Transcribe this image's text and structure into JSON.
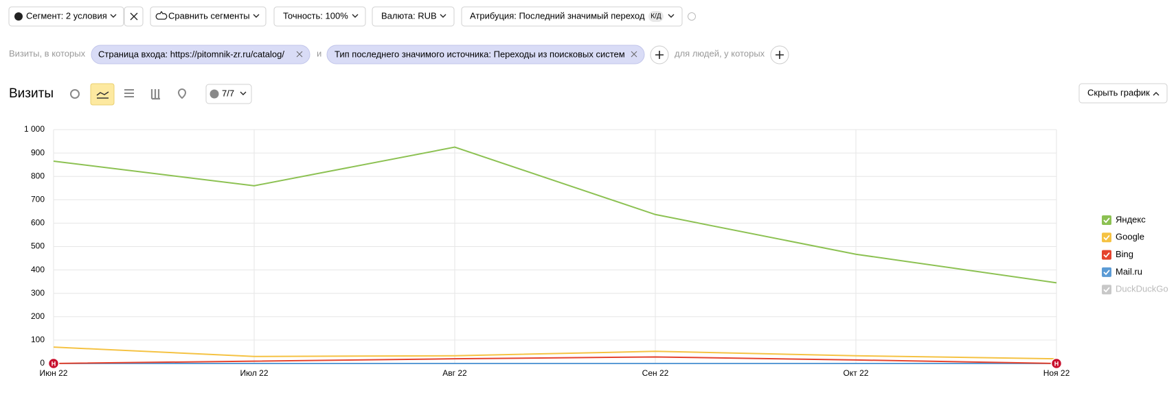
{
  "toolbar": {
    "segment": "Сегмент: 2 условия",
    "compare": "Сравнить сегменты",
    "accuracy": "Точность: 100%",
    "currency": "Валюта: RUB",
    "attribution": "Атрибуция: Последний значимый переход",
    "attribution_badge": "К/Д"
  },
  "filter": {
    "prefix": "Визиты, в которых",
    "conditions": [
      "Страница входа: https://pitomnik-zr.ru/catalog/",
      "Тип последнего значимого источника: Переходы из поисковых систем"
    ],
    "joiner": "и",
    "people": "для людей, у которых"
  },
  "report": {
    "title": "Визиты",
    "annotations_toggle": "7/7",
    "hide_chart": "Скрыть график"
  },
  "chart_data": {
    "type": "line",
    "categories": [
      "Июн 22",
      "Июл 22",
      "Авг 22",
      "Сен 22",
      "Окт 22",
      "Ноя 22"
    ],
    "series": [
      {
        "name": "Яндекс",
        "color": "#8cc152",
        "values": [
          865,
          760,
          925,
          637,
          467,
          345
        ]
      },
      {
        "name": "Google",
        "color": "#f5c242",
        "values": [
          70,
          30,
          33,
          52,
          33,
          20
        ]
      },
      {
        "name": "Bing",
        "color": "#e5432d",
        "values": [
          0,
          10,
          20,
          28,
          15,
          0
        ]
      },
      {
        "name": "Mail.ru",
        "color": "#5b9bd5",
        "values": [
          0,
          0,
          0,
          0,
          0,
          0
        ]
      },
      {
        "name": "DuckDuckGo",
        "color": "#c8c8c8",
        "enabled": false,
        "values": [
          null,
          null,
          null,
          null,
          null,
          null
        ]
      }
    ],
    "ylim": [
      0,
      1000
    ],
    "yticks": [
      0,
      100,
      200,
      300,
      400,
      500,
      600,
      700,
      800,
      900,
      {
        "value": 1000,
        "label": "1 000"
      }
    ],
    "grid": true,
    "legend": "right",
    "markers": [
      {
        "index": 0,
        "text": "Н"
      },
      {
        "index": 5,
        "text": "Н"
      }
    ]
  }
}
